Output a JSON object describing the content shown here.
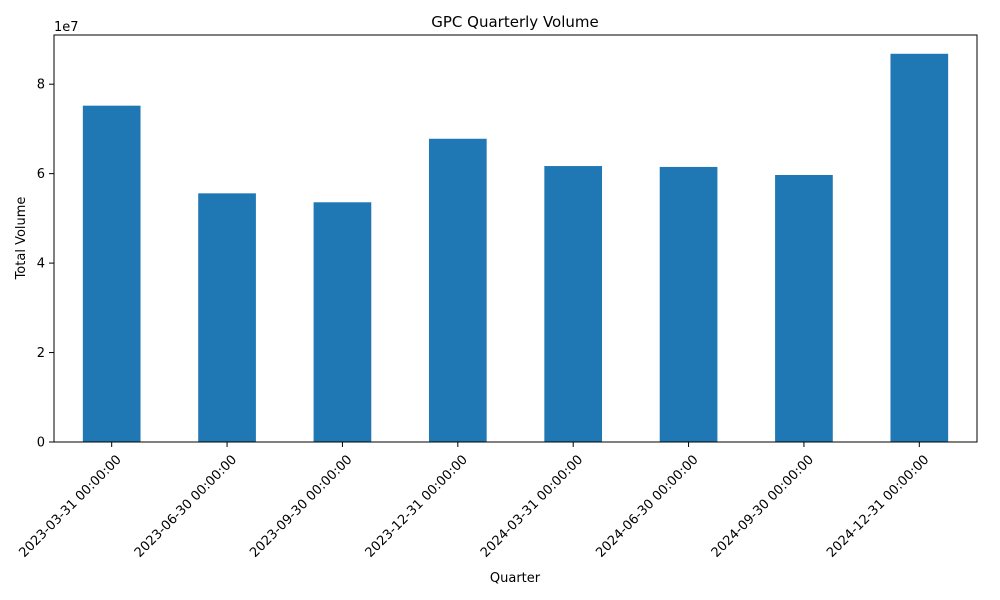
{
  "chart_data": {
    "type": "bar",
    "title": "GPC Quarterly Volume",
    "xlabel": "Quarter",
    "ylabel": "Total Volume",
    "y_multiplier_label": "1e7",
    "categories": [
      "2023-03-31 00:00:00",
      "2023-06-30 00:00:00",
      "2023-09-30 00:00:00",
      "2023-12-31 00:00:00",
      "2024-03-31 00:00:00",
      "2024-06-30 00:00:00",
      "2024-09-30 00:00:00",
      "2024-12-31 00:00:00"
    ],
    "values": [
      75200000,
      55600000,
      53600000,
      67800000,
      61700000,
      61500000,
      59700000,
      86800000
    ],
    "ylim": [
      0,
      91000000
    ],
    "y_ticks": [
      0,
      20000000,
      40000000,
      60000000,
      80000000
    ],
    "y_tick_labels": [
      "0",
      "2",
      "4",
      "6",
      "8"
    ],
    "bar_color": "#1f77b4",
    "grid": false,
    "legend": "none"
  }
}
